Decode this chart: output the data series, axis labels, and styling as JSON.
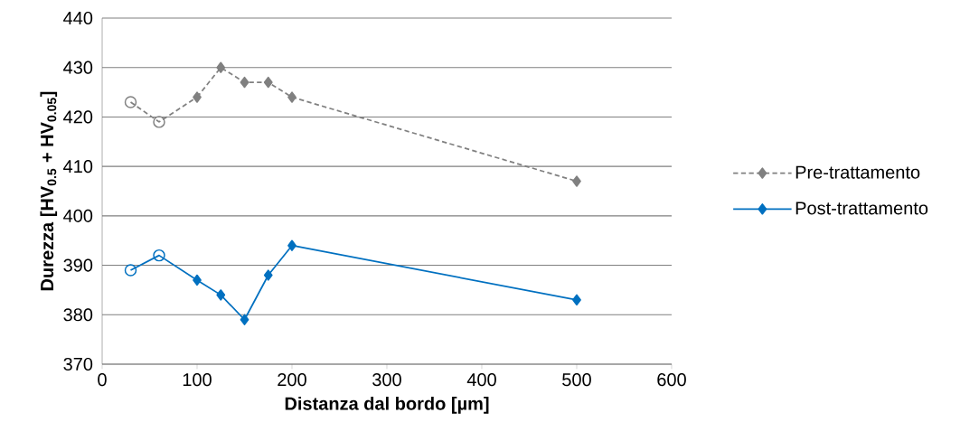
{
  "chart_data": {
    "type": "line",
    "xlabel": "Distanza dal bordo [µm]",
    "ylabel": "Durezza [**HV$_{0.5}$ + HV$_{0.05}$**]",
    "xlim": [
      0,
      600
    ],
    "xticks": [
      0,
      100,
      200,
      300,
      400,
      500,
      600
    ],
    "ylim": [
      370,
      440
    ],
    "yticks": [
      370,
      380,
      390,
      400,
      410,
      420,
      430,
      440
    ],
    "grid": "y",
    "legend": "right",
    "series": [
      {
        "color": "#808080",
        "line_style": "dashed",
        "marker": "none",
        "x": [
          30,
          60,
          100
        ],
        "values": [
          423,
          419,
          424
        ]
      },
      {
        "type": "scatter",
        "color": "#808080",
        "marker": "circle",
        "x": [
          30,
          60
        ],
        "values": [
          423,
          419
        ]
      },
      {
        "name": "Pre-trattamento",
        "color": "#808080",
        "line_style": "dashed",
        "marker": "diamond",
        "x": [
          100,
          125,
          150,
          175,
          200,
          500
        ],
        "values": [
          424,
          430,
          427,
          427,
          424,
          407
        ]
      },
      {
        "color": "#0070c0",
        "line_style": "solid",
        "marker": "none",
        "x": [
          30,
          60,
          100
        ],
        "values": [
          389,
          392,
          387
        ]
      },
      {
        "type": "scatter",
        "color": "#0070c0",
        "marker": "circle",
        "x": [
          30,
          60
        ],
        "values": [
          389,
          392
        ]
      },
      {
        "name": "Post-trattamento",
        "color": "#0070c0",
        "line_style": "solid",
        "marker": "diamond",
        "x": [
          100,
          125,
          150,
          175,
          200,
          500
        ],
        "values": [
          387,
          384,
          379,
          388,
          394,
          383
        ]
      }
    ]
  }
}
